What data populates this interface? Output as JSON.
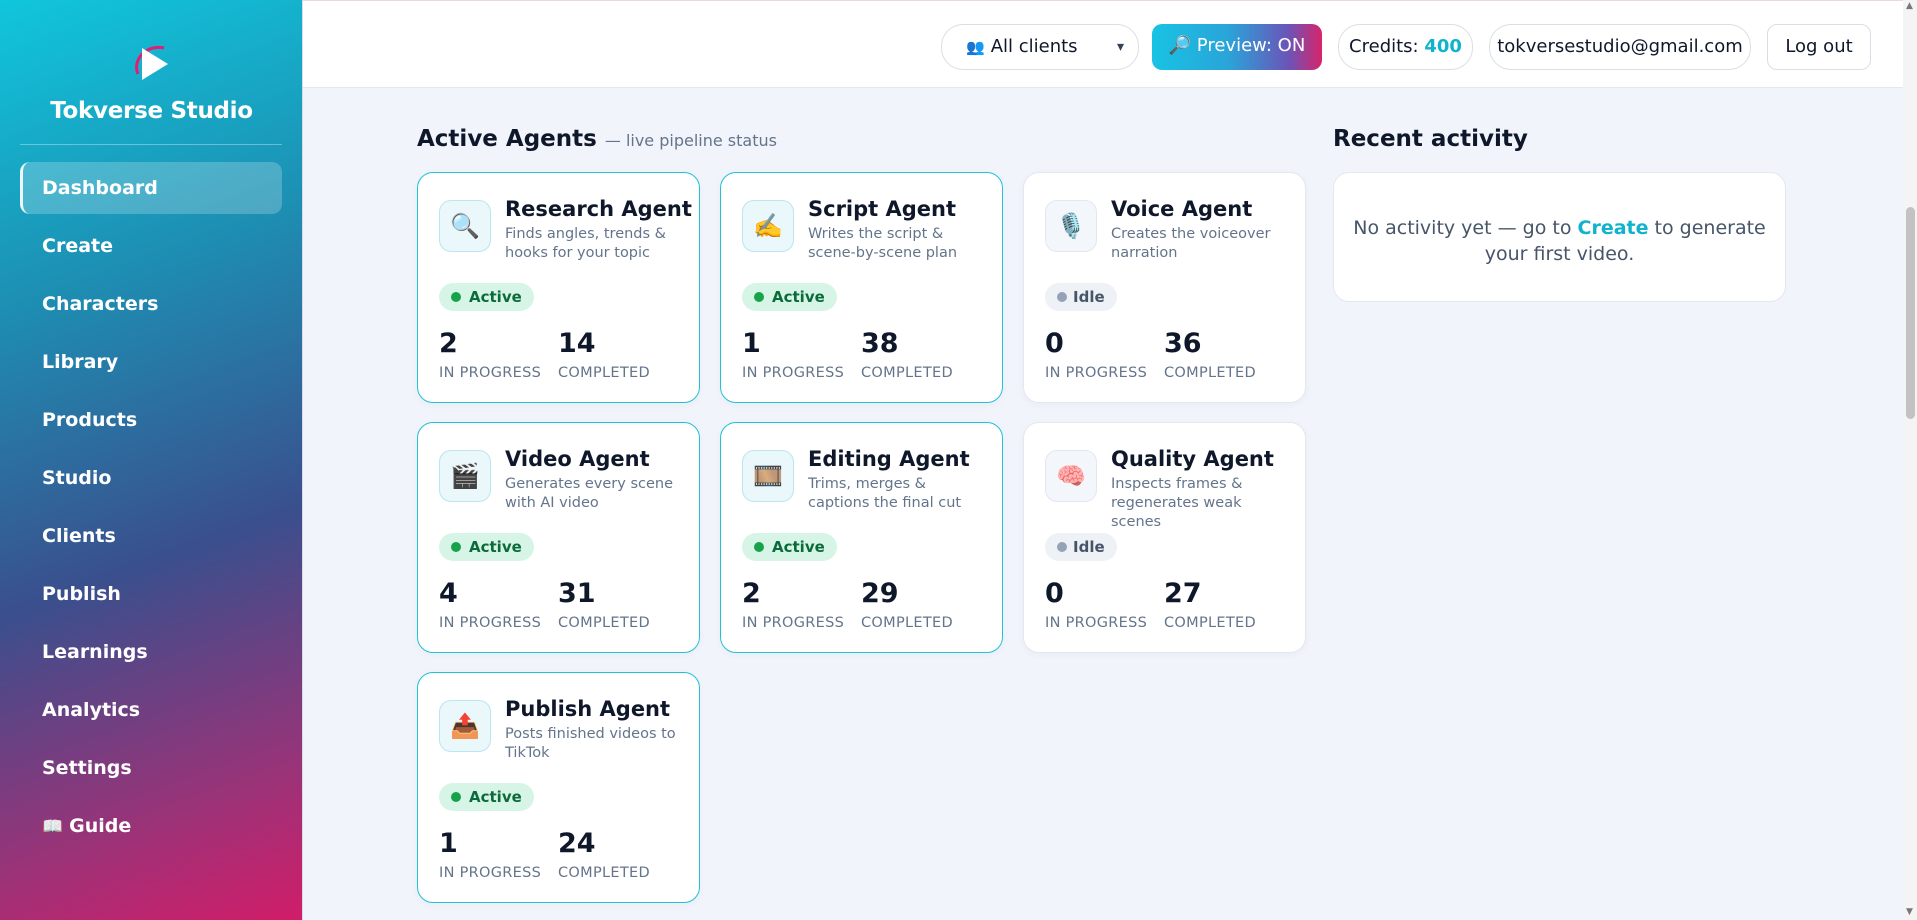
{
  "brand": {
    "name": "Tokverse Studio"
  },
  "sidebar": {
    "items": [
      {
        "label": "Dashboard",
        "active": true
      },
      {
        "label": "Create"
      },
      {
        "label": "Characters"
      },
      {
        "label": "Library"
      },
      {
        "label": "Products"
      },
      {
        "label": "Studio"
      },
      {
        "label": "Clients"
      },
      {
        "label": "Publish"
      },
      {
        "label": "Learnings"
      },
      {
        "label": "Analytics"
      },
      {
        "label": "Settings"
      },
      {
        "label": "Guide",
        "icon": "book-icon"
      }
    ]
  },
  "topbar": {
    "client_select": "All clients",
    "preview": "🔎 Preview: ON",
    "credits_label": "Credits:",
    "credits_value": "400",
    "email": "tokversestudio@gmail.com",
    "logout": "Log out"
  },
  "agents_section": {
    "title": "Active Agents",
    "subtitle": "— live pipeline status"
  },
  "labels": {
    "in_progress": "IN PROGRESS",
    "completed": "COMPLETED"
  },
  "agents": [
    {
      "name": "Research Agent",
      "desc": "Finds angles, trends & hooks for your topic",
      "status": "Active",
      "in_progress": "2",
      "completed": "14",
      "icon": "magnifier-icon",
      "glyph": "🔍"
    },
    {
      "name": "Script Agent",
      "desc": "Writes the script & scene-by-scene plan",
      "status": "Active",
      "in_progress": "1",
      "completed": "38",
      "icon": "writing-hand-icon",
      "glyph": "✍️"
    },
    {
      "name": "Voice Agent",
      "desc": "Creates the voiceover narration",
      "status": "Idle",
      "in_progress": "0",
      "completed": "36",
      "icon": "microphone-icon",
      "glyph": "🎙️"
    },
    {
      "name": "Video Agent",
      "desc": "Generates every scene with AI video",
      "status": "Active",
      "in_progress": "4",
      "completed": "31",
      "icon": "clapperboard-icon",
      "glyph": "🎬"
    },
    {
      "name": "Editing Agent",
      "desc": "Trims, merges & captions the final cut",
      "status": "Active",
      "in_progress": "2",
      "completed": "29",
      "icon": "film-frames-icon",
      "glyph": "🎞️"
    },
    {
      "name": "Quality Agent",
      "desc": "Inspects frames & regenerates weak scenes",
      "status": "Idle",
      "in_progress": "0",
      "completed": "27",
      "icon": "brain-icon",
      "glyph": "🧠"
    },
    {
      "name": "Publish Agent",
      "desc": "Posts finished videos to TikTok",
      "status": "Active",
      "in_progress": "1",
      "completed": "24",
      "icon": "outbox-tray-icon",
      "glyph": "📤"
    }
  ],
  "recent": {
    "title": "Recent activity",
    "text_before": "No activity yet — go to",
    "link": "Create",
    "text_after": "to generate your first video."
  },
  "colors": {
    "accent": "#0fb3cc",
    "active_badge": "#d7f5e6",
    "idle_badge": "#eef1f5"
  }
}
